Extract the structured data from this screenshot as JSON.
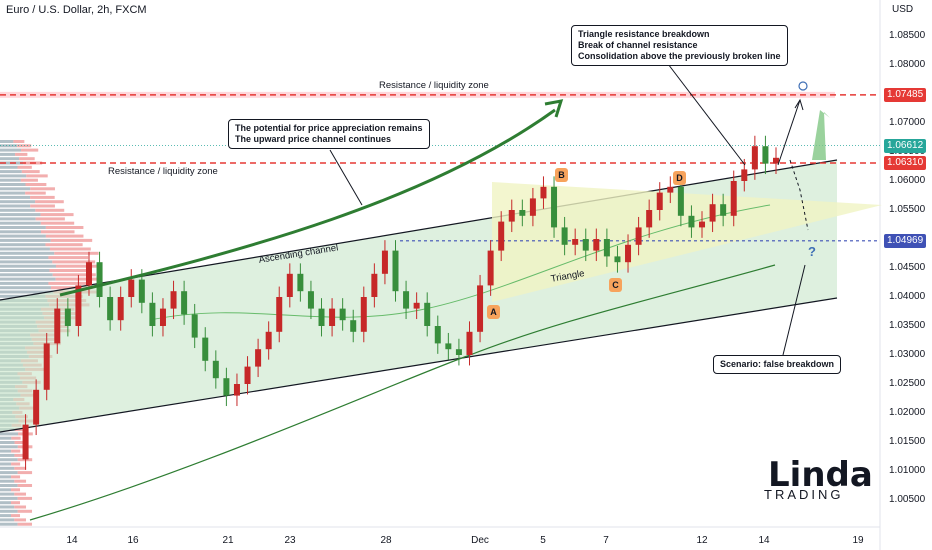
{
  "header": {
    "title": "Euro / U.S. Dollar, 2h, FXCM",
    "currency": "USD"
  },
  "colors": {
    "up": "#26a69a",
    "down": "#ef5350",
    "candle_up": "#c62828",
    "candle_down": "#388e3c",
    "channel_fill": "#c8e6c9",
    "triangle_fill": "#f0f4c3",
    "resistance": "#e53935",
    "ma": "#2e7d32"
  },
  "chart_data": {
    "type": "candlestick",
    "symbol": "EURUSD",
    "timeframe": "2h",
    "ylim": [
      1.0,
      1.091
    ],
    "y_ticks": [
      "1.08500",
      "1.08000",
      "1.07500",
      "1.07000",
      "1.06500",
      "1.06000",
      "1.05500",
      "1.05000",
      "1.04500",
      "1.04000",
      "1.03500",
      "1.03000",
      "1.02500",
      "1.02000",
      "1.01500",
      "1.01000",
      "1.00500"
    ],
    "x_ticks": [
      "14",
      "16",
      "21",
      "23",
      "28",
      "Dec",
      "5",
      "7",
      "12",
      "14",
      "19"
    ],
    "price_tags": [
      {
        "value": "1.07485",
        "kind": "resistance"
      },
      {
        "value": "1.06612",
        "kind": "last"
      },
      {
        "value": "1.06310",
        "kind": "level"
      },
      {
        "value": "1.04969",
        "kind": "support"
      }
    ],
    "path": [
      1.012,
      1.018,
      1.024,
      1.032,
      1.038,
      1.035,
      1.042,
      1.046,
      1.04,
      1.036,
      1.04,
      1.043,
      1.039,
      1.035,
      1.038,
      1.041,
      1.037,
      1.033,
      1.029,
      1.026,
      1.023,
      1.025,
      1.028,
      1.031,
      1.034,
      1.04,
      1.044,
      1.041,
      1.038,
      1.035,
      1.038,
      1.036,
      1.034,
      1.04,
      1.044,
      1.048,
      1.041,
      1.038,
      1.039,
      1.035,
      1.032,
      1.031,
      1.03,
      1.034,
      1.042,
      1.048,
      1.053,
      1.055,
      1.054,
      1.057,
      1.059,
      1.052,
      1.049,
      1.05,
      1.048,
      1.05,
      1.047,
      1.046,
      1.049,
      1.052,
      1.055,
      1.058,
      1.059,
      1.054,
      1.052,
      1.053,
      1.056,
      1.054,
      1.06,
      1.062,
      1.066,
      1.063,
      1.064
    ],
    "levels": {
      "resistance_top": 1.07485,
      "resistance_low": 1.0631,
      "support": 1.04969,
      "last": 1.06612
    },
    "points": [
      {
        "label": "A",
        "price": 1.0395
      },
      {
        "label": "B",
        "price": 1.0615
      },
      {
        "label": "C",
        "price": 1.0445
      },
      {
        "label": "D",
        "price": 1.0605
      }
    ],
    "labels": {
      "resistance_zone_top": "Resistance / liquidity zone",
      "resistance_zone_low": "Resistance / liquidity zone",
      "ascending_channel": "Ascending channel",
      "triangle": "Triangle",
      "question": "?"
    },
    "callouts": {
      "appreciation": [
        "The potential for price appreciation remains",
        "The upward price channel continues"
      ],
      "breakdown": [
        "Triangle resistance breakdown",
        "Break of channel resistance",
        "Consolidation above the previously broken line"
      ],
      "scenario": [
        "Scenario: false breakdown"
      ]
    }
  },
  "brand": {
    "top": "Linda",
    "bottom": "TRADING"
  }
}
